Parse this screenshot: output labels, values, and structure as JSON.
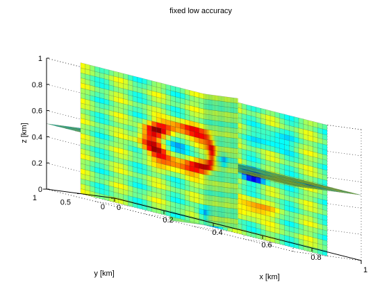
{
  "chart_data": {
    "type": "slice-volume",
    "title": "fixed low accuracy",
    "xlabel": "x [km]",
    "ylabel": "y [km]",
    "zlabel": "z [km]",
    "xlim": [
      0,
      1
    ],
    "ylim": [
      0,
      1
    ],
    "zlim": [
      0,
      1
    ],
    "xticks": [
      "0",
      "0.2",
      "0.4",
      "0.6",
      "0.8",
      "1"
    ],
    "xtick_values": [
      0,
      0.2,
      0.4,
      0.6,
      0.8,
      1
    ],
    "yticks": [
      "0",
      "0.5",
      "1"
    ],
    "ytick_values": [
      0,
      0.5,
      1
    ],
    "zticks": [
      "0",
      "0.2",
      "0.4",
      "0.6",
      "0.8",
      "1"
    ],
    "ztick_values": [
      0,
      0.2,
      0.4,
      0.6,
      0.8,
      1
    ],
    "grid": true,
    "colormap": "jet",
    "slices": [
      {
        "plane": "x",
        "value": 0.5
      },
      {
        "plane": "y",
        "value": 0.5
      },
      {
        "plane": "z",
        "value": 0.5
      }
    ]
  }
}
